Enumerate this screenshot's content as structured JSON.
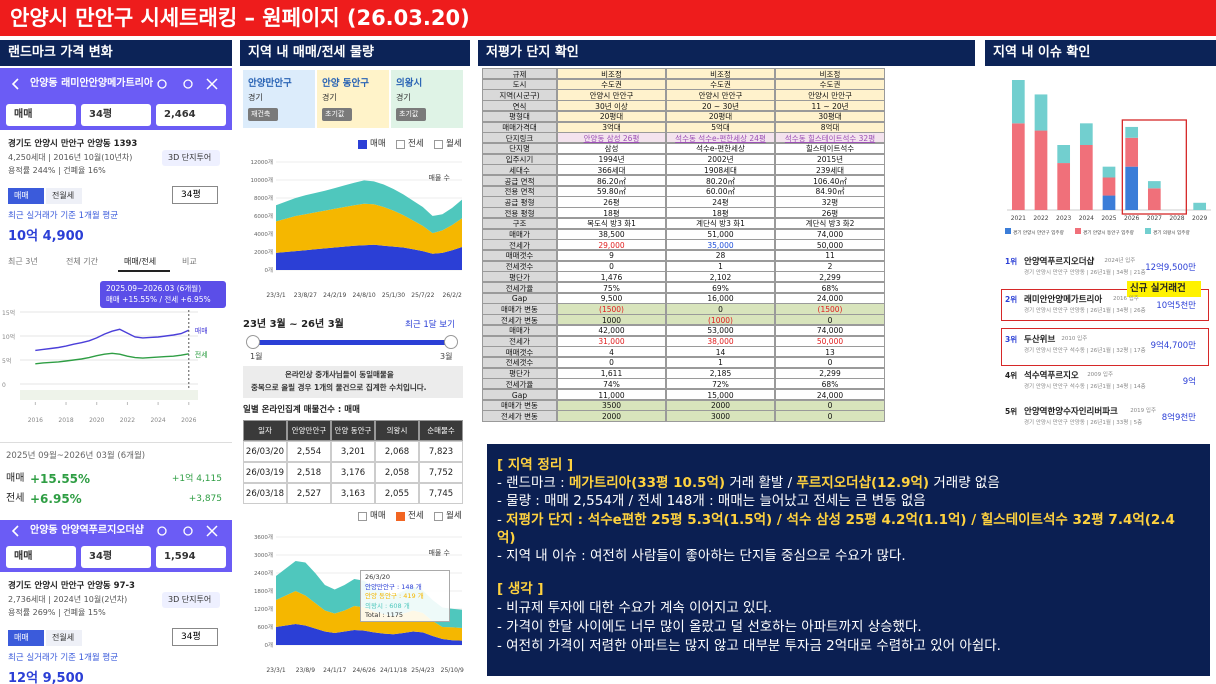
{
  "header": {
    "title": "안양시 만안구 시세트래킹 – 원페이지 (26.03.20)"
  },
  "sections": [
    "랜드마크 가격 변화",
    "지역 내 매매/전세 물량",
    "저평가 단지 확인",
    "지역 내 이슈 확인"
  ],
  "landmark": {
    "cards": [
      {
        "name": "안양동 래미안안양메가트리아",
        "filters": [
          "매매",
          "34평",
          "2,464"
        ],
        "address": "경기도 안양시 만안구 안양동 1393",
        "info1": "4,250세대 | 2016년 10월(10년차)",
        "info2": "용적률 244% | 건폐율 16%",
        "tour": "3D 단지투어",
        "tabs": [
          "매매",
          "전월세"
        ],
        "size": "34평",
        "avg_label": "최근 실거래가 기준 1개월 평균",
        "avg_price": "10억 4,900"
      },
      {
        "name": "안양동 안양역푸르지오더샵",
        "filters": [
          "매매",
          "34평",
          "1,594"
        ],
        "address": "경기도 안양시 만안구 안양동 97-3",
        "info1": "2,736세대 | 2024년 10월(2년차)",
        "info2": "용적률 269% | 건폐율 15%",
        "tour": "3D 단지투어",
        "tabs": [
          "매매",
          "전월세"
        ],
        "size": "34평",
        "avg_label": "최근 실거래가 기준 1개월 평균",
        "avg_price": "12억 9,500"
      }
    ],
    "chart_tabs": [
      "최근 3년",
      "전체 기간",
      "매매/전세",
      "비교"
    ],
    "chart": {
      "type": "line",
      "tooltip": [
        "2025.09~2026.03 (6개월)",
        "매매 +15.55% / 전세 +6.95%"
      ],
      "x": [
        2016,
        2016.5,
        2017,
        2017.5,
        2018,
        2018.5,
        2019,
        2019.5,
        2020,
        2020.5,
        2021,
        2021.5,
        2022,
        2022.5,
        2023,
        2023.5,
        2024,
        2024.5,
        2025,
        2025.5,
        2026
      ],
      "xlim": [
        2015,
        2026.6
      ],
      "xticks": [
        2016,
        2018,
        2020,
        2022,
        2024,
        2026
      ],
      "ylim": [
        0,
        15
      ],
      "yticks": [
        0,
        {
          "value": 5,
          "label": "5억"
        },
        {
          "value": 10,
          "label": "10억"
        },
        {
          "value": 15,
          "label": "15억"
        }
      ],
      "series": [
        {
          "name": "매매",
          "color": "#4b3fd9",
          "values": [
            7.0,
            7.2,
            7.4,
            7.6,
            7.9,
            8.3,
            8.6,
            9.0,
            9.6,
            10.4,
            11.0,
            11.4,
            10.6,
            9.8,
            9.6,
            9.7,
            9.8,
            10.0,
            10.2,
            10.5,
            11.2
          ]
        },
        {
          "name": "전세",
          "color": "#2f9e44",
          "values": [
            4.2,
            4.4,
            4.5,
            4.6,
            4.8,
            5.0,
            5.2,
            5.5,
            5.9,
            6.2,
            6.4,
            6.2,
            5.8,
            5.5,
            5.4,
            5.5,
            5.6,
            5.7,
            5.8,
            6.0,
            6.3
          ]
        }
      ]
    },
    "period": "2025년 09월~2026년 03월 (6개월)",
    "changes": [
      {
        "label": "매매",
        "pct": "+15.55%",
        "amount": "+1억 4,115"
      },
      {
        "label": "전세",
        "pct": "+6.95%",
        "amount": "+3,875"
      }
    ]
  },
  "supply": {
    "regions": [
      {
        "name": "안양만안구",
        "province": "경기",
        "badge": "재건축",
        "color": "#dcecfb"
      },
      {
        "name": "안양 동안구",
        "province": "경기",
        "badge": "초기값",
        "color": "#fff3c9"
      },
      {
        "name": "의왕시",
        "province": "경기",
        "badge": "초기값",
        "color": "#dff3e6"
      }
    ],
    "charts": [
      {
        "type": "stacked_area",
        "legend": [
          "매매",
          "전세",
          "월세"
        ],
        "checked": 0,
        "check_color": "#2b3fd6",
        "axis_label": "매물 수",
        "categories": [
          "23/3/1",
          null,
          null,
          "23/8/27",
          null,
          null,
          "24/2/19",
          null,
          null,
          "24/8/10",
          null,
          null,
          "25/1/30",
          null,
          null,
          "25/7/22",
          null,
          null,
          "26/2/2",
          null
        ],
        "ylim": [
          0,
          12000
        ],
        "yticks": [
          {
            "value": 0,
            "label": "0개"
          },
          {
            "value": 2000,
            "label": "2000개"
          },
          {
            "value": 4000,
            "label": "4000개"
          },
          {
            "value": 6000,
            "label": "6000개"
          },
          {
            "value": 8000,
            "label": "8000개"
          },
          {
            "value": 10000,
            "label": "10000개"
          },
          {
            "value": 12000,
            "label": "12000개"
          }
        ],
        "series": [
          {
            "name": "안양만안구",
            "color": "#2b3fd6",
            "values": [
              1900,
              2000,
              2100,
              2200,
              2300,
              2400,
              2500,
              2600,
              2700,
              2750,
              2800,
              2700,
              2600,
              2500,
              2300,
              2100,
              1800,
              1900,
              2200,
              2554
            ]
          },
          {
            "name": "안양 동안구",
            "color": "#f5b700",
            "values": [
              3500,
              3700,
              3900,
              4000,
              4100,
              4200,
              4300,
              4400,
              4500,
              4600,
              4500,
              4300,
              4000,
              3600,
              3200,
              2800,
              2300,
              2500,
              2800,
              3201
            ]
          },
          {
            "name": "의왕시",
            "color": "#4fc7bd",
            "values": [
              1800,
              1900,
              2000,
              2100,
              2150,
              2200,
              2300,
              2400,
              2500,
              2600,
              2550,
              2500,
              2400,
              2300,
              2200,
              2100,
              1900,
              1800,
              1900,
              2068
            ]
          }
        ]
      },
      {
        "type": "stacked_area",
        "legend": [
          "매매",
          "전세",
          "월세"
        ],
        "checked": 1,
        "check_color": "#f26522",
        "axis_label": "매물 수",
        "categories": [
          "23/3/1",
          null,
          null,
          "23/8/9",
          null,
          null,
          "24/1/17",
          null,
          null,
          "24/6/26",
          null,
          null,
          "24/11/18",
          null,
          null,
          "25/4/23",
          null,
          null,
          "25/10/9",
          null
        ],
        "ylim": [
          0,
          3600
        ],
        "yticks": [
          {
            "value": 0,
            "label": "0개"
          },
          {
            "value": 600,
            "label": "600개"
          },
          {
            "value": 1200,
            "label": "1200개"
          },
          {
            "value": 1800,
            "label": "1800개"
          },
          {
            "value": 2400,
            "label": "2400개"
          },
          {
            "value": 3000,
            "label": "3000개"
          },
          {
            "value": 3600,
            "label": "3600개"
          }
        ],
        "tooltip": [
          "26/3/20",
          "안양만안구 : 148 개",
          "안양 동안구 : 419 개",
          "의왕시 : 608 개",
          "Total : 1175"
        ],
        "series": [
          {
            "name": "안양만안구",
            "color": "#2b3fd6",
            "values": [
              600,
              650,
              700,
              650,
              550,
              450,
              400,
              450,
              500,
              480,
              420,
              380,
              360,
              400,
              450,
              420,
              300,
              200,
              160,
              148
            ]
          },
          {
            "name": "안양 동안구",
            "color": "#f5b700",
            "values": [
              900,
              1000,
              1100,
              1000,
              850,
              700,
              650,
              700,
              800,
              780,
              700,
              650,
              600,
              650,
              700,
              650,
              500,
              400,
              430,
              419
            ]
          },
          {
            "name": "의왕시",
            "color": "#4fc7bd",
            "values": [
              800,
              900,
              1000,
              1100,
              1000,
              850,
              800,
              850,
              900,
              880,
              800,
              750,
              700,
              750,
              800,
              750,
              700,
              650,
              620,
              608
            ]
          }
        ]
      }
    ],
    "period": "23년 3월 ~ 26년 3월",
    "recent": "최근 1달 보기",
    "slider": [
      "1월",
      "3월"
    ],
    "notice": [
      "온라인상 중개사님들이 동일매물을",
      "중복으로 올릴 경우 1개의 물건으로 집계한 수치입니다."
    ],
    "table_title": "일별 온라인집계 매물건수 : 매매",
    "table": {
      "header": [
        "일자",
        "안양만안구",
        "안양 동안구",
        "의왕시",
        "순매물수"
      ],
      "rows": [
        [
          "26/03/20",
          "2,554",
          "3,201",
          "2,068",
          "7,823"
        ],
        [
          "26/03/19",
          "2,518",
          "3,176",
          "2,058",
          "7,752"
        ],
        [
          "26/03/18",
          "2,527",
          "3,163",
          "2,055",
          "7,745"
        ]
      ]
    }
  },
  "valuation": {
    "rows": [
      {
        "cells": [
          "규제",
          "비조정",
          "비조정",
          "비조정"
        ],
        "fill": "#fff2cc"
      },
      {
        "cells": [
          "도시",
          "수도권",
          "수도권",
          "수도권"
        ],
        "fill": "#fff2cc"
      },
      {
        "cells": [
          "지역(시군구)",
          "안양시 만안구",
          "안양시 만안구",
          "안양시 만안구"
        ],
        "fill": "#fff2cc"
      },
      {
        "cells": [
          "연식",
          "30년 이상",
          "20 ~ 30년",
          "11 ~ 20년"
        ],
        "fill": "#fff2cc"
      },
      {
        "cells": [
          "평형대",
          "20평대",
          "20평대",
          "30평대"
        ],
        "fill": "#fff2cc"
      },
      {
        "cells": [
          "매매가격대",
          "3억대",
          "5억대",
          "8억대"
        ],
        "fill": "#fff2cc"
      },
      {
        "cells": [
          "단지링크",
          {
            "text": "안양동 삼성 26평",
            "color": "#9b4fb5"
          },
          {
            "text": "석수동 석수e-편한세상 24평",
            "color": "#9b4fb5"
          },
          {
            "text": "석수동 힐스테이트석수 32평",
            "color": "#9b4fb5"
          }
        ],
        "fill": "#f4e3ee"
      },
      {
        "cells": [
          "단지명",
          "삼성",
          "석수e-편한세상",
          "힐스테이트석수"
        ]
      },
      {
        "cells": [
          "입주시기",
          "1994년",
          "2002년",
          "2015년"
        ]
      },
      {
        "cells": [
          "세대수",
          "366세대",
          "1908세대",
          "239세대"
        ]
      },
      {
        "cells": [
          "공급 면적",
          "86.20㎡",
          "80.20㎡",
          "106.40㎡"
        ]
      },
      {
        "cells": [
          "전용 면적",
          "59.80㎡",
          "60.00㎡",
          "84.90㎡"
        ]
      },
      {
        "cells": [
          "공급 평형",
          "26평",
          "24평",
          "32평"
        ]
      },
      {
        "cells": [
          "전용 평형",
          "18평",
          "18평",
          "26평"
        ]
      },
      {
        "cells": [
          "구조",
          "복도식 방3 화1",
          "계단식 방3 화1",
          "계단식 방3 화2"
        ]
      },
      {
        "cells": [
          "매매가",
          "38,500",
          "51,000",
          "74,000"
        ]
      },
      {
        "cells": [
          "전세가",
          {
            "text": "29,000",
            "color": "#e02020"
          },
          {
            "text": "35,000",
            "color": "#1f4fd8"
          },
          "50,000"
        ]
      },
      {
        "cells": [
          "매매갯수",
          "9",
          "28",
          "11"
        ]
      },
      {
        "cells": [
          "전세갯수",
          "0",
          "1",
          "2"
        ]
      },
      {
        "cells": [
          "평단가",
          "1,476",
          "2,102",
          "2,299"
        ]
      },
      {
        "cells": [
          "전세가율",
          "75%",
          "69%",
          "68%"
        ]
      },
      {
        "cells": [
          "Gap",
          "9,500",
          "16,000",
          "24,000"
        ]
      },
      {
        "cells": [
          "매매가 변동",
          {
            "text": "(1500)",
            "color": "#e02020"
          },
          "0",
          {
            "text": "(1500)",
            "color": "#e02020"
          }
        ],
        "fill": "#d8e4bc"
      },
      {
        "cells": [
          "전세가 변동",
          "1000",
          {
            "text": "(1000)",
            "color": "#e02020"
          },
          "0"
        ],
        "fill": "#d8e4bc"
      },
      {
        "cells": [
          "매매가",
          "42,000",
          "53,000",
          "74,000"
        ]
      },
      {
        "cells": [
          "전세가",
          {
            "text": "31,000",
            "color": "#e02020"
          },
          {
            "text": "38,000",
            "color": "#e02020"
          },
          {
            "text": "50,000",
            "color": "#e02020"
          }
        ]
      },
      {
        "cells": [
          "매매갯수",
          "4",
          "14",
          "13"
        ]
      },
      {
        "cells": [
          "전세갯수",
          "0",
          "1",
          "0"
        ]
      },
      {
        "cells": [
          "평단가",
          "1,611",
          "2,185",
          "2,299"
        ]
      },
      {
        "cells": [
          "전세가율",
          "74%",
          "72%",
          "68%"
        ]
      },
      {
        "cells": [
          "Gap",
          "11,000",
          "15,000",
          "24,000"
        ]
      },
      {
        "cells": [
          "매매가 변동",
          "3500",
          "2000",
          "0"
        ],
        "fill": "#d8e4bc"
      },
      {
        "cells": [
          "전세가 변동",
          "2000",
          "3000",
          "0"
        ],
        "fill": "#d8e4bc"
      }
    ]
  },
  "issues": {
    "chart": {
      "type": "stacked_bar",
      "categories": [
        "2021",
        "2022",
        "2023",
        "2024",
        "2025",
        "2026",
        "2027",
        "2028",
        "2029"
      ],
      "series": [
        {
          "name": "경기 안양시 만안구 입주량",
          "color": "#3b7dd8",
          "values": [
            0,
            0,
            0,
            0,
            400,
            1200,
            0,
            0,
            0
          ]
        },
        {
          "name": "경기 안양시 동안구 입주량",
          "color": "#f0707a",
          "values": [
            2400,
            2200,
            1300,
            1800,
            500,
            800,
            600,
            0,
            0
          ]
        },
        {
          "name": "경기 의왕시 입주량",
          "color": "#72cfcf",
          "values": [
            1200,
            1000,
            500,
            600,
            300,
            300,
            200,
            0,
            200
          ]
        }
      ]
    },
    "callout": "신규 실거래건",
    "ranks": [
      {
        "rank": "1위",
        "name": "안양역푸르지오더샵",
        "year": "2024년 입주",
        "detail": "경기 안양시 만안구 안양동 | 26년1월 | 34평 | 21층",
        "price": "12억9,500만"
      },
      {
        "rank": "2위",
        "name": "래미안안양메가트리아",
        "year": "2016 입주",
        "detail": "경기 안양시 만안구 안양동 | 26년1월 | 34평 | 26층",
        "price": "10억5천만"
      },
      {
        "rank": "3위",
        "name": "두산위브",
        "year": "2010 입주",
        "detail": "경기 안양시 만안구 석수동 | 26년1월 | 32평 | 17층",
        "price": "9억4,700만"
      },
      {
        "rank": "4위",
        "name": "석수역푸르지오",
        "year": "2009 입주",
        "detail": "경기 안양시 만안구 석수동 | 26년1월 | 34평 | 14층",
        "price": "9억"
      },
      {
        "rank": "5위",
        "name": "안양역한양수자인리버파크",
        "year": "2019 입주",
        "detail": "경기 안양시 만안구 안양동 | 26년1월 | 33평 | 5층",
        "price": "8억9천만"
      }
    ]
  },
  "summary": {
    "lines": [
      [
        {
          "text": "[ 지역 정리 ]",
          "color": "#ffd23f"
        }
      ],
      [
        {
          "text": "- 랜드마크 : "
        },
        {
          "text": "메가트리아(33평 10.5억)",
          "color": "#ffd23f"
        },
        {
          "text": " 거래 활발 / "
        },
        {
          "text": "푸르지오더샵(12.9억)",
          "color": "#ffd23f"
        },
        {
          "text": " 거래량 없음"
        }
      ],
      [
        {
          "text": "- 물량 : 매매 2,554개 / 전세 148개 : 매매는 늘어났고 전세는 큰 변동 없음"
        }
      ],
      [
        {
          "text": "- "
        },
        {
          "text": "저평가 단지 : 석수e편한 25평 5.3억(1.5억) / 석수 삼성 25평 4.2억(1.1억) / 힐스테이트석수 32평 7.4억(2.4억)",
          "color": "#ffd23f"
        }
      ],
      [
        {
          "text": "- 지역 내 이슈 : 여전히 사람들이 좋아하는 단지들 중심으로 수요가 많다."
        }
      ],
      [
        {
          "text": "[ 생각 ]",
          "color": "#ffd23f"
        }
      ],
      [
        {
          "text": "- 비규제 투자에 대한 수요가 계속 이어지고 있다."
        }
      ],
      [
        {
          "text": "- 가격이 한달 사이에도 너무 많이 올랐고 덜 선호하는 아파트까지 상승했다."
        }
      ],
      [
        {
          "text": "- 여전히 가격이 저렴한 아파트는 많지 않고 대부분 투자금 2억대로 수렴하고 있어 아쉽다."
        }
      ]
    ]
  }
}
